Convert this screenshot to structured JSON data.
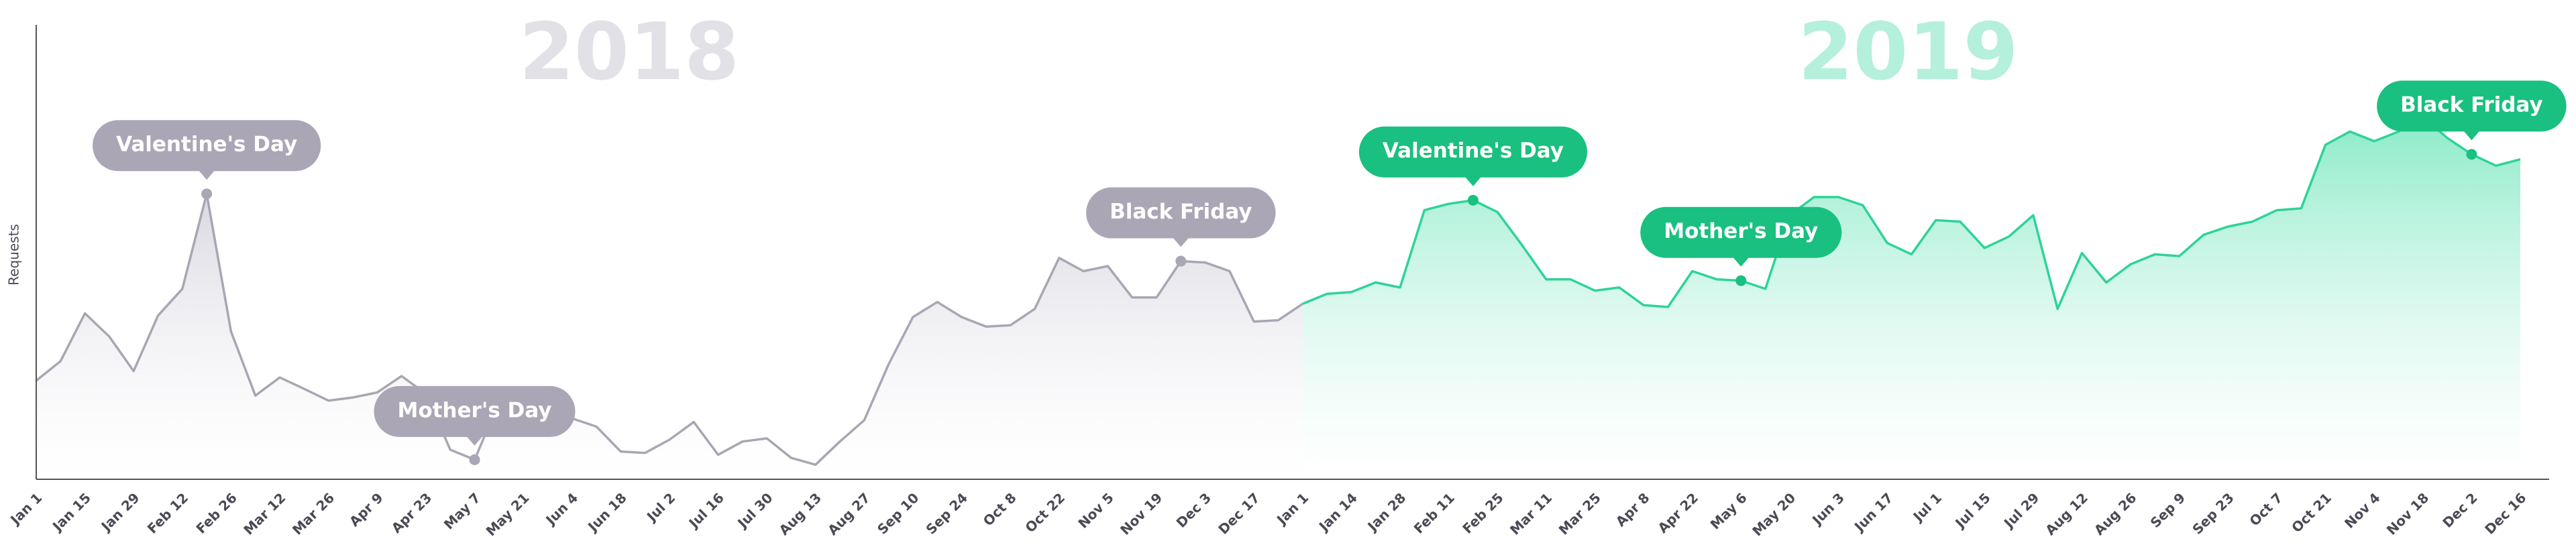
{
  "chart_data": {
    "type": "line",
    "y_label": "Requests",
    "ylim": [
      0,
      100
    ],
    "categories": [
      "Jan 1",
      null,
      "Jan 15",
      null,
      "Jan 29",
      null,
      "Feb 12",
      null,
      "Feb 26",
      null,
      "Mar 12",
      null,
      "Mar 26",
      null,
      "Apr 9",
      null,
      "Apr 23",
      null,
      "May 7",
      null,
      "May 21",
      null,
      "Jun 4",
      null,
      "Jun 18",
      null,
      "Jul 2",
      null,
      "Jul 16",
      null,
      "Jul 30",
      null,
      "Aug 13",
      null,
      "Aug 27",
      null,
      "Sep 10",
      null,
      "Sep 24",
      null,
      "Oct 8",
      null,
      "Oct 22",
      null,
      "Nov 5",
      null,
      "Nov 19",
      null,
      "Dec 3",
      null,
      "Dec 17",
      null,
      "Jan 1",
      null,
      "Jan 14",
      null,
      "Jan 28",
      null,
      "Feb 11",
      null,
      "Feb 25",
      null,
      "Mar 11",
      null,
      "Mar 25",
      null,
      "Apr 8",
      null,
      "Apr 22",
      null,
      "May 6",
      null,
      "May 20",
      null,
      "Jun 3",
      null,
      "Jun 17",
      null,
      "Jul 1",
      null,
      "Jul 15",
      null,
      "Jul 29",
      null,
      "Aug 12",
      null,
      "Aug 26",
      null,
      "Sep 9",
      null,
      "Sep 23",
      null,
      "Oct 7",
      null,
      "Oct 21",
      null,
      "Nov 4",
      null,
      "Nov 18",
      null,
      "Dec 2",
      null,
      "Dec 16"
    ],
    "series": [
      {
        "name": "2018",
        "color": "#a9a6b3",
        "label_color": "#e2e1e7",
        "fill": "#dcdbe2",
        "values": [
          21.7,
          26,
          36.5,
          31.4,
          23.8,
          36,
          41.9,
          62.8,
          32.5,
          18.4,
          22.4,
          19.9,
          17.3,
          18,
          19.1,
          22.7,
          18.8,
          6.5,
          4.3,
          17,
          17.3,
          11.9,
          13.4,
          11.6,
          6.1,
          5.8,
          8.7,
          12.6,
          5.4,
          8.3,
          9,
          4.7,
          3.2,
          8.3,
          13,
          25.3,
          35.7,
          39,
          35.7,
          33.6,
          33.9,
          37.5,
          48.7,
          45.8,
          46.9,
          40,
          40,
          48,
          47.7,
          45.8,
          34.7,
          35,
          38.6,
          null,
          null,
          null,
          null,
          null,
          null,
          null,
          null,
          null,
          null,
          null,
          null,
          null,
          null,
          null,
          null,
          null,
          null,
          null,
          null,
          null,
          null,
          null,
          null,
          null,
          null,
          null,
          null,
          null,
          null,
          null,
          null,
          null,
          null,
          null,
          null,
          null,
          null,
          null,
          null,
          null,
          null,
          null,
          null,
          null,
          null,
          null,
          null,
          null,
          null
        ],
        "annotations": [
          {
            "text": "Valentine's Day",
            "point": 7
          },
          {
            "text": "Mother's Day",
            "point": 18
          },
          {
            "text": "Black Friday",
            "point": 47
          }
        ]
      },
      {
        "name": "2019",
        "color": "#2ed398",
        "label_color": "#b4f0dc",
        "fill": "#8ceccb",
        "values": [
          null,
          null,
          null,
          null,
          null,
          null,
          null,
          null,
          null,
          null,
          null,
          null,
          null,
          null,
          null,
          null,
          null,
          null,
          null,
          null,
          null,
          null,
          null,
          null,
          null,
          null,
          null,
          null,
          null,
          null,
          null,
          null,
          null,
          null,
          null,
          null,
          null,
          null,
          null,
          null,
          null,
          null,
          null,
          null,
          null,
          null,
          null,
          null,
          null,
          null,
          null,
          null,
          38.6,
          40.8,
          41.2,
          43.3,
          42.2,
          59.2,
          60.6,
          61.4,
          58.8,
          51.6,
          44,
          44,
          41.5,
          42.2,
          38.3,
          37.9,
          45.8,
          44,
          43.7,
          41.9,
          58.1,
          62.1,
          62.1,
          60.3,
          52,
          49.5,
          57,
          56.7,
          50.9,
          53.4,
          58.1,
          37.5,
          49.8,
          43.3,
          47.3,
          49.5,
          49.1,
          53.8,
          55.6,
          56.7,
          59.2,
          59.6,
          73.6,
          76.5,
          74.4,
          76.5,
          79.8,
          75.1,
          71.5,
          69,
          70.4
        ],
        "annotations": [
          {
            "text": "Valentine's Day",
            "point": 59
          },
          {
            "text": "Mother's Day",
            "point": 70
          },
          {
            "text": "Black Friday",
            "point": 100
          }
        ]
      }
    ]
  }
}
